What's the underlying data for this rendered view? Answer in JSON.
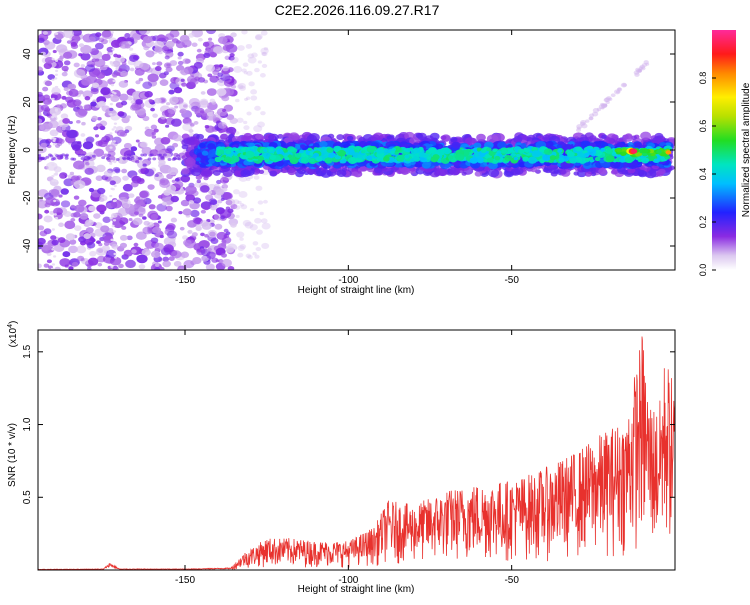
{
  "title": "C2E2.2026.116.09.27.R17",
  "chart_data": [
    {
      "type": "heatmap",
      "title": "C2E2.2026.116.09.27.R17",
      "xlabel": "Height of straight line (km)",
      "ylabel": "Frequency (Hz)",
      "xlim": [
        -195,
        0
      ],
      "ylim": [
        -50,
        50
      ],
      "xticks": [
        -150,
        -100,
        -50
      ],
      "yticks": [
        -40,
        -20,
        0,
        20,
        40
      ],
      "colorbar": {
        "label": "Normalized spectral amplitude",
        "range": [
          0,
          1
        ],
        "ticks": [
          "0.0",
          "0.2",
          "0.4",
          "0.6",
          "0.8"
        ],
        "tick_values": [
          0,
          0.2,
          0.4,
          0.6,
          0.8
        ]
      },
      "features": {
        "noise_region_x": [
          -195,
          -135
        ],
        "signal_band": {
          "x": [
            -150,
            -1
          ],
          "center_freq": -2,
          "peak_x": -13,
          "peak_amplitude": 0.95
        },
        "harmonic_trace": {
          "x_start": -30,
          "x_end": -8,
          "freq_start": 8,
          "freq_end": 37
        }
      }
    },
    {
      "type": "line",
      "xlabel": "Height of straight line (km)",
      "ylabel": "SNR (10 * v/v)",
      "multiplier_label": "(x10",
      "multiplier_exp": "4",
      "multiplier_close": ")",
      "xlim": [
        -195,
        0
      ],
      "ylim": [
        0,
        1.65
      ],
      "xticks": [
        -150,
        -100,
        -50
      ],
      "yticks": [
        "0.5",
        "1.0",
        "1.5"
      ],
      "ytick_values": [
        0.5,
        1.0,
        1.5
      ],
      "color": "#e8312d",
      "envelope": {
        "x": [
          -195,
          -175,
          -173,
          -170,
          -150,
          -136,
          -132,
          -125,
          -118,
          -110,
          -100,
          -92,
          -88,
          -80,
          -70,
          -60,
          -50,
          -40,
          -30,
          -22,
          -15,
          -12,
          -10,
          -8,
          -5,
          -3,
          0
        ],
        "y": [
          0.005,
          0.008,
          0.05,
          0.008,
          0.008,
          0.015,
          0.12,
          0.22,
          0.22,
          0.2,
          0.2,
          0.3,
          0.48,
          0.45,
          0.55,
          0.6,
          0.62,
          0.7,
          0.82,
          0.95,
          1.05,
          1.4,
          1.65,
          1.2,
          1.1,
          1.5,
          1.25
        ]
      }
    }
  ]
}
